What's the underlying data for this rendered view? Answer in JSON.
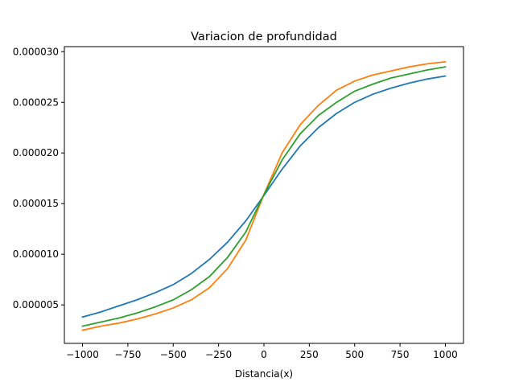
{
  "chart_data": {
    "type": "line",
    "title": "Variacion de profundidad",
    "xlabel": "Distancia(x)",
    "ylabel": "",
    "xlim": [
      -1100,
      1100
    ],
    "ylim": [
      1.2e-06,
      3.05e-05
    ],
    "xticks": [
      -1000,
      -750,
      -500,
      -250,
      0,
      250,
      500,
      750,
      1000
    ],
    "xtick_labels": [
      "−1000",
      "−750",
      "−500",
      "−250",
      "0",
      "250",
      "500",
      "750",
      "1000"
    ],
    "yticks": [
      5e-06,
      1e-05,
      1.5e-05,
      2e-05,
      2.5e-05,
      3e-05
    ],
    "ytick_labels": [
      "0.000005",
      "0.000010",
      "0.000015",
      "0.000020",
      "0.000025",
      "0.000030"
    ],
    "grid": false,
    "legend": "none",
    "x": [
      -1000,
      -900,
      -800,
      -700,
      -600,
      -500,
      -400,
      -300,
      -200,
      -100,
      0,
      100,
      200,
      300,
      400,
      500,
      600,
      700,
      800,
      900,
      1000
    ],
    "series": [
      {
        "color": "#1f77b4",
        "values": [
          3.8e-06,
          4.3e-06,
          4.9e-06,
          5.5e-06,
          6.2e-06,
          7e-06,
          8.1e-06,
          9.5e-06,
          1.12e-05,
          1.33e-05,
          1.58e-05,
          1.84e-05,
          2.07e-05,
          2.25e-05,
          2.39e-05,
          2.5e-05,
          2.58e-05,
          2.64e-05,
          2.69e-05,
          2.73e-05,
          2.76e-05
        ]
      },
      {
        "color": "#ff7f0e",
        "values": [
          2.5e-06,
          2.9e-06,
          3.2e-06,
          3.6e-06,
          4.1e-06,
          4.7e-06,
          5.5e-06,
          6.7e-06,
          8.6e-06,
          1.14e-05,
          1.59e-05,
          2e-05,
          2.28e-05,
          2.47e-05,
          2.62e-05,
          2.71e-05,
          2.77e-05,
          2.81e-05,
          2.85e-05,
          2.88e-05,
          2.9e-05
        ]
      },
      {
        "color": "#2ca02c",
        "values": [
          2.9e-06,
          3.3e-06,
          3.7e-06,
          4.2e-06,
          4.8e-06,
          5.5e-06,
          6.5e-06,
          7.8e-06,
          9.7e-06,
          1.22e-05,
          1.59e-05,
          1.93e-05,
          2.19e-05,
          2.37e-05,
          2.5e-05,
          2.61e-05,
          2.68e-05,
          2.74e-05,
          2.78e-05,
          2.82e-05,
          2.85e-05
        ]
      }
    ]
  }
}
